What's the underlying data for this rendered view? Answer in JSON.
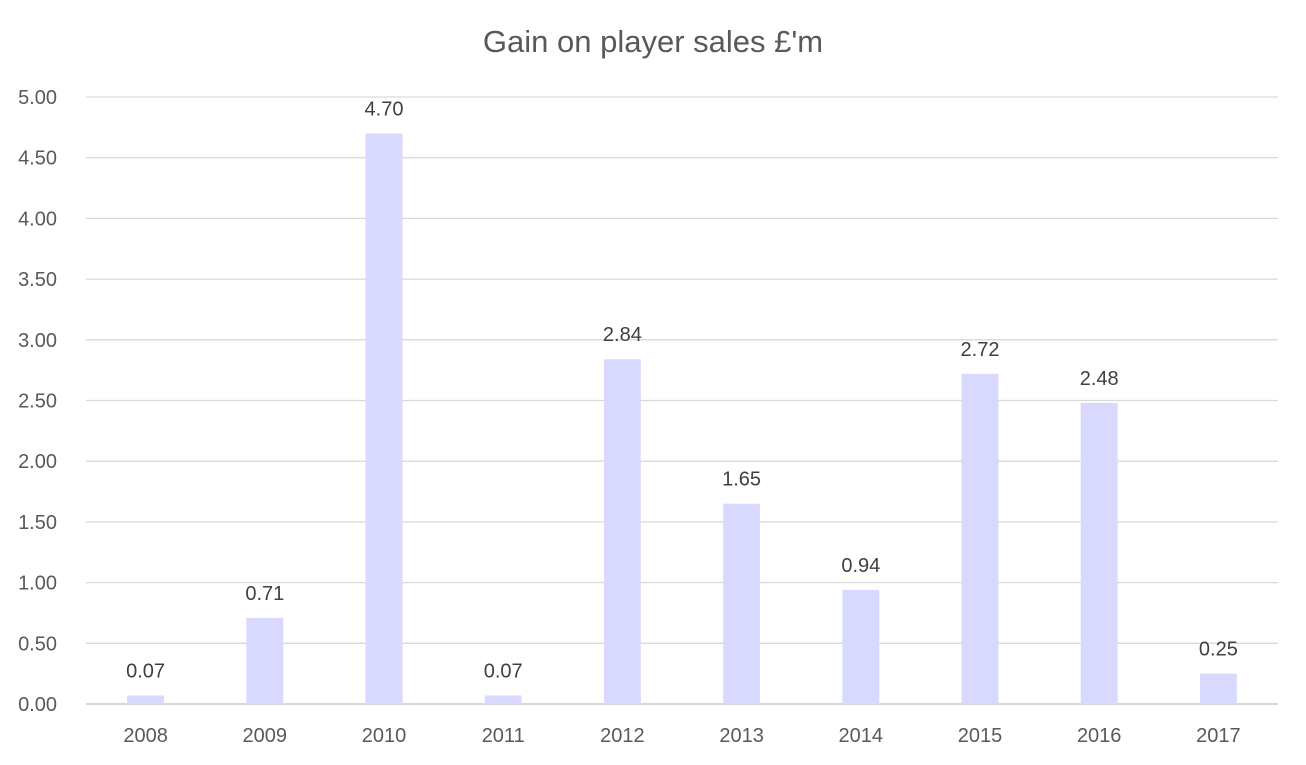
{
  "chart_data": {
    "type": "bar",
    "title": "Gain on player sales £'m",
    "xlabel": "",
    "ylabel": "",
    "categories": [
      "2008",
      "2009",
      "2010",
      "2011",
      "2012",
      "2013",
      "2014",
      "2015",
      "2016",
      "2017"
    ],
    "values": [
      0.07,
      0.71,
      4.7,
      0.07,
      2.84,
      1.65,
      0.94,
      2.72,
      2.48,
      0.25
    ],
    "data_labels": [
      "0.07",
      "0.71",
      "4.70",
      "0.07",
      "2.84",
      "1.65",
      "0.94",
      "2.72",
      "2.48",
      "0.25"
    ],
    "ylim": [
      0,
      5
    ],
    "yticks": [
      "0.00",
      "0.50",
      "1.00",
      "1.50",
      "2.00",
      "2.50",
      "3.00",
      "3.50",
      "4.00",
      "4.50",
      "5.00"
    ],
    "grid": true,
    "legend": "none",
    "colors": {
      "bar": "#d9d9ff",
      "grid": "#d9d9d9",
      "axis": "#bfbfbf"
    }
  }
}
